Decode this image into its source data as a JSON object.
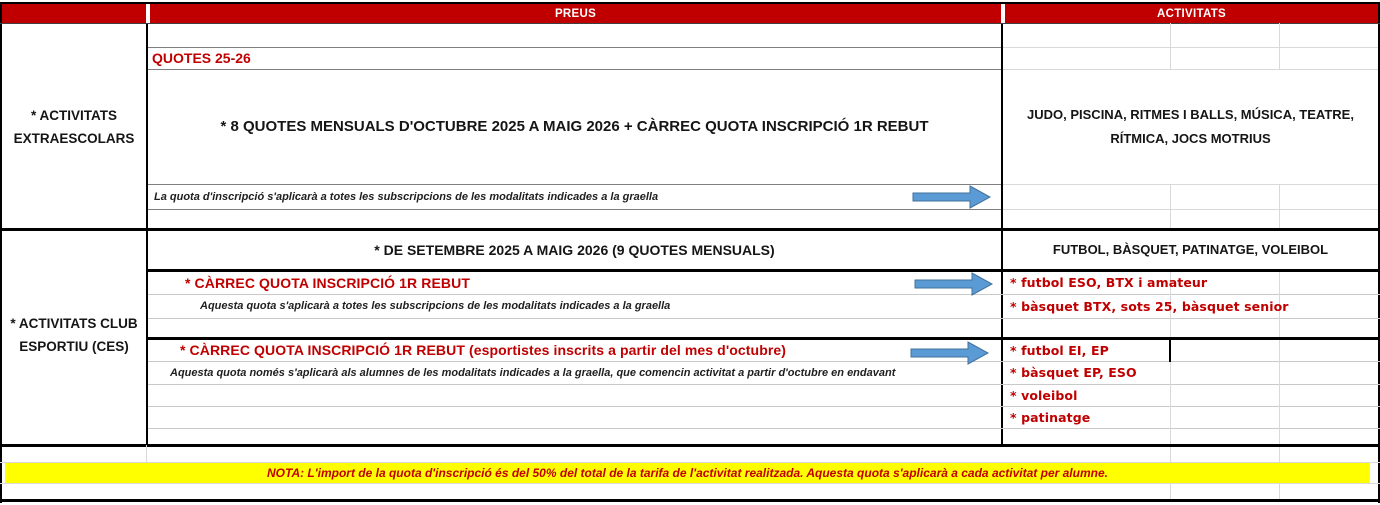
{
  "colors": {
    "header_red": "#C00000",
    "accent_red": "#C00000",
    "highlight_yellow": "#FFFF00",
    "arrow_blue": "#5B9BD5"
  },
  "header": {
    "preus": "PREUS",
    "activitats": "ACTIVITATS"
  },
  "sidebar": {
    "extraescolars_line1": "* ACTIVITATS",
    "extraescolars_line2": "EXTRAESCOLARS",
    "ces_line1": "* ACTIVITATS CLUB",
    "ces_line2": "ESPORTIU (CES)"
  },
  "extraescolars": {
    "quotes_title": "QUOTES 25-26",
    "pricing_line": "* 8 QUOTES MENSUALS D'OCTUBRE 2025 A MAIG 2026 + CÀRREC QUOTA INSCRIPCIÓ 1R REBUT",
    "inscription_note": "La quota d'inscripció s'aplicarà a totes les subscripcions de les modalitats indicades a la graella",
    "activities": "JUDO, PISCINA, RITMES I BALLS, MÚSICA, TEATRE, RÍTMICA, JOCS MOTRIUS"
  },
  "ces": {
    "pricing_line": "* DE SETEMBRE 2025 A MAIG 2026 (9 QUOTES MENSUALS)",
    "activities_header": "FUTBOL, BÀSQUET, PATINATGE, VOLEIBOL",
    "carrec1": {
      "title": "* CÀRREC QUOTA INSCRIPCIÓ 1R REBUT",
      "note": "Aquesta quota s'aplicarà a totes les subscripcions de les modalitats indicades a la graella",
      "activities": [
        "* futbol ESO, BTX i amateur",
        "* bàsquet BTX, sots 25, bàsquet senior"
      ]
    },
    "carrec2": {
      "title": "* CÀRREC QUOTA INSCRIPCIÓ 1R REBUT (esportistes inscrits a partir del mes d'octubre)",
      "note": "Aquesta quota només s'aplicarà als alumnes de les modalitats indicades a la graella, que comencin activitat a partir d'octubre en endavant",
      "activities": [
        "* futbol EI, EP",
        "* bàsquet EP, ESO",
        "* voleibol",
        "* patinatge"
      ]
    }
  },
  "footer": {
    "nota": "NOTA: L'import de la quota d'inscripció és del 50% del total de la tarifa de l'activitat realitzada. Aquesta quota s'aplicarà a cada activitat per alumne."
  }
}
